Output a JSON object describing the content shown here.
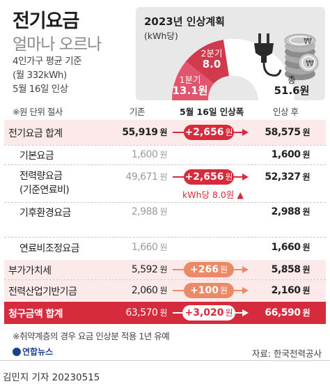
{
  "title": {
    "line1": "전기요금",
    "line2": "얼마나 오르나"
  },
  "info": {
    "line1": "4인가구 평균 기준",
    "line2": "(월 332kWh)",
    "line3": "5월 16일 인상"
  },
  "plan": {
    "title": "2023년 인상계획",
    "unit": "(kWh당)",
    "q1_label": "1분기",
    "q1_value": "13.1원",
    "q2_label": "2분기",
    "q2_value": "8.0",
    "total_label": "총",
    "total_value": "51.6원",
    "colors": {
      "q1": "#e2556c",
      "q2": "#cf3b4c",
      "rest": "#ffffff",
      "bg": "#e8e8e8"
    },
    "icons": [
      "plug-icon",
      "coin-stack-icon"
    ],
    "coin_symbol": "₩"
  },
  "table": {
    "header": {
      "note": "※원 단위 절사",
      "before": "기존",
      "increase": "5월 16일 인상폭",
      "after": "인상 후"
    },
    "unit": "원",
    "rows": [
      {
        "label": "전기요금 합계",
        "before": "55,919",
        "increase": "+2,656",
        "after": "58,575"
      },
      {
        "label": "기본요금",
        "before": "1,600",
        "increase": "",
        "after": "1,600"
      },
      {
        "label": "전력량요금",
        "label2": "(기준연료비)",
        "before": "49,671",
        "increase": "+2,656",
        "increase_note": "kWh당 8.0원",
        "after": "52,327"
      },
      {
        "label": "기후환경요금",
        "before": "2,988",
        "increase": "",
        "after": "2,988"
      },
      {
        "label": "연료비조정요금",
        "before": "1,660",
        "increase": "",
        "after": "1,660"
      },
      {
        "label": "부가가치세",
        "before": "5,592",
        "increase": "+266",
        "after": "5,858"
      },
      {
        "label": "전력산업기반기금",
        "before": "2,060",
        "increase": "+100",
        "after": "2,160"
      },
      {
        "label": "청구금액 합계",
        "before": "63,570",
        "increase": "+3,020",
        "after": "66,590"
      }
    ],
    "colors": {
      "red": "#d52b3c",
      "orange": "#ea8a66",
      "pink_row": "#fce9e9",
      "total_row": "#d52b3c"
    }
  },
  "footer": {
    "note": "※취약계층의 경우 요금 인상분 적용 1년 유예",
    "logo": "연합뉴스",
    "source": "자료: 한국전력공사",
    "byline": "김민지 기자  20230515"
  }
}
